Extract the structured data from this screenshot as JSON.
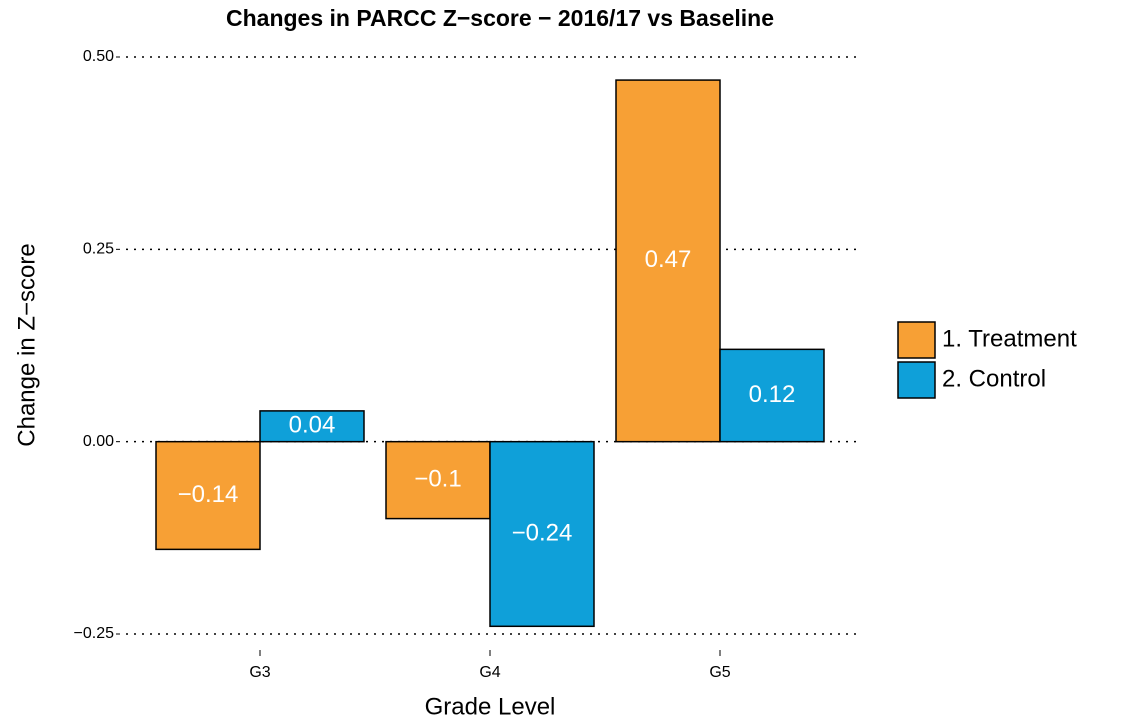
{
  "chart_data": {
    "type": "bar",
    "title": "Changes in PARCC Z−score − 2016/17 vs Baseline",
    "x_label": "Grade Level",
    "y_label": "Change in Z−score",
    "categories": [
      "G3",
      "G4",
      "G5"
    ],
    "series": [
      {
        "name": "1. Treatment",
        "color": "#f7a035",
        "values": [
          -0.14,
          -0.1,
          0.47
        ],
        "value_labels": [
          "−0.14",
          "−0.1",
          "0.47"
        ]
      },
      {
        "name": "2. Control",
        "color": "#0fa0d9",
        "values": [
          0.04,
          -0.24,
          0.12
        ],
        "value_labels": [
          "0.04",
          "−0.24",
          "0.12"
        ]
      }
    ],
    "ylim": [
      -0.25,
      0.5
    ],
    "yticks": [
      {
        "value": -0.25,
        "label": "−0.25"
      },
      {
        "value": 0,
        "label": "0.00"
      },
      {
        "value": 0.25,
        "label": "0.25"
      },
      {
        "value": 0.5,
        "label": "0.50"
      }
    ],
    "grid": true,
    "legend": "right"
  }
}
